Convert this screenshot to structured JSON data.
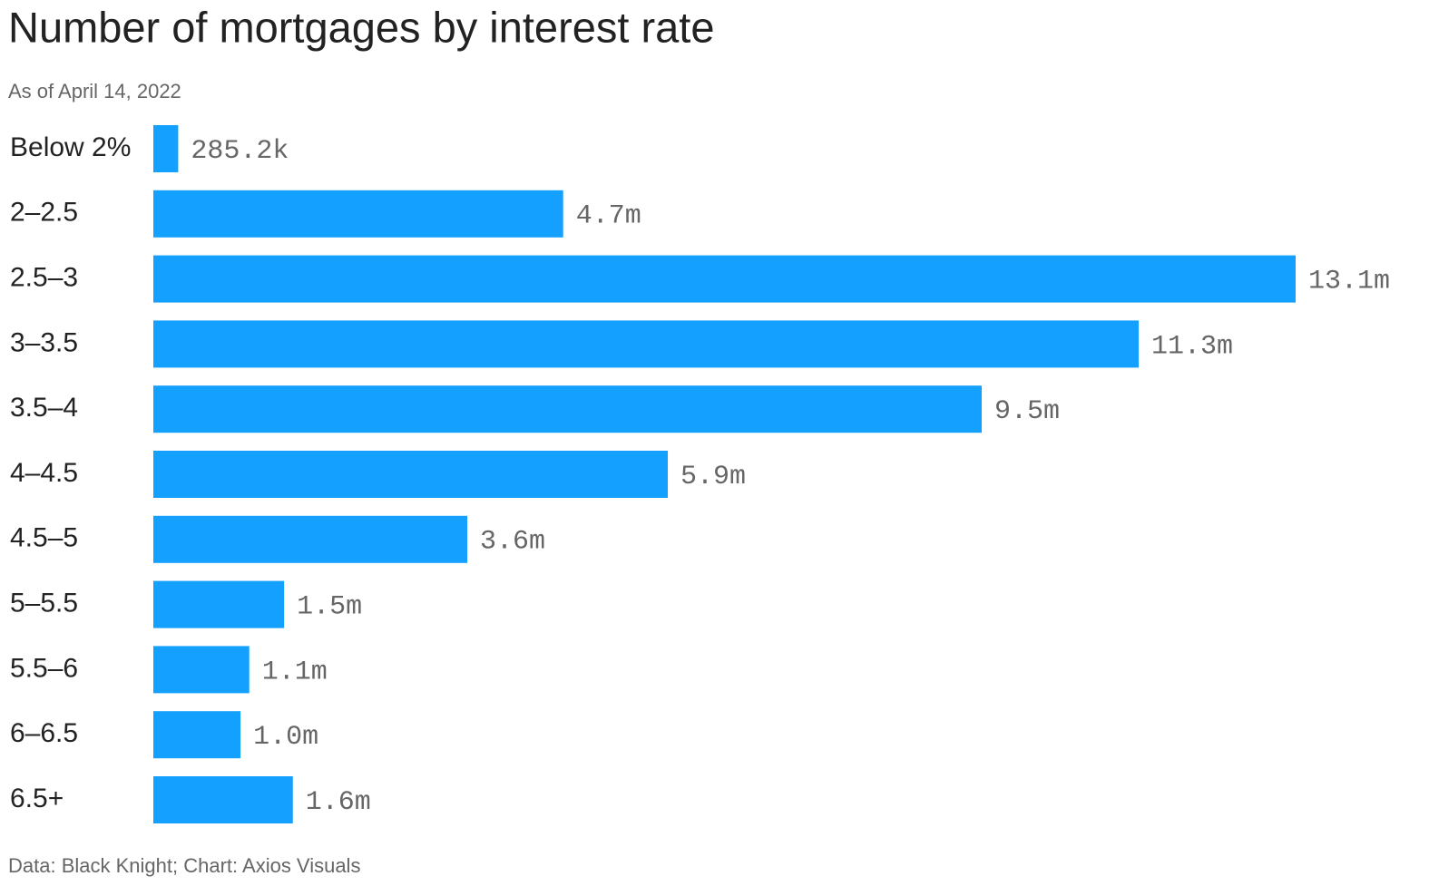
{
  "chart_data": {
    "type": "bar",
    "orientation": "horizontal",
    "title": "Number of mortgages by interest rate",
    "subtitle": "As of April 14, 2022",
    "footer": "Data: Black Knight; Chart: Axios Visuals",
    "categories": [
      "Below 2%",
      "2–2.5",
      "2.5–3",
      "3–3.5",
      "3.5–4",
      "4–4.5",
      "4.5–5",
      "5–5.5",
      "5.5–6",
      "6–6.5",
      "6.5+"
    ],
    "values": [
      285200,
      4700000,
      13100000,
      11300000,
      9500000,
      5900000,
      3600000,
      1500000,
      1100000,
      1000000,
      1600000
    ],
    "value_labels": [
      "285.2k",
      "4.7m",
      "13.1m",
      "11.3m",
      "9.5m",
      "5.9m",
      "3.6m",
      "1.5m",
      "1.1m",
      "1.0m",
      "1.6m"
    ],
    "color": "#14a0ff"
  }
}
